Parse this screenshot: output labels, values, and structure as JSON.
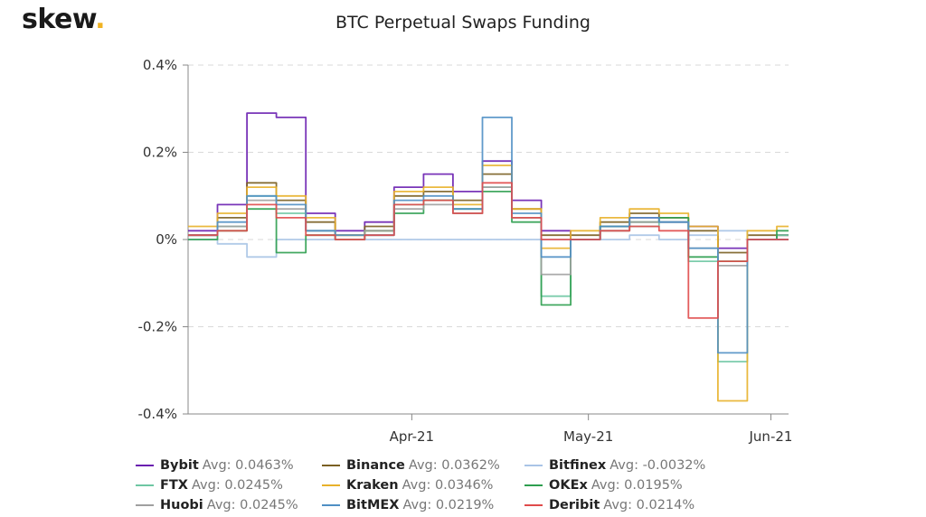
{
  "brand": {
    "name": "skew",
    "dot": "."
  },
  "chart_data": {
    "type": "line",
    "title": "BTC Perpetual Swaps Funding",
    "xlabel": "",
    "ylabel": "",
    "y_ticks": [
      "0.4%",
      "0.2%",
      "0%",
      "-0.2%",
      "-0.4%"
    ],
    "ylim": [
      -0.4,
      0.4
    ],
    "x_ticks": [
      "Apr-21",
      "May-21",
      "Jun-21"
    ],
    "x_tick_dates": [
      "2021-04-01",
      "2021-05-01",
      "2021-06-01"
    ],
    "xlim": [
      "2021-02-22",
      "2021-06-04"
    ],
    "grid": "horizontal-dashed",
    "legend_position": "bottom",
    "x": [
      "2021-02-22",
      "2021-02-27",
      "2021-03-04",
      "2021-03-09",
      "2021-03-14",
      "2021-03-19",
      "2021-03-24",
      "2021-03-29",
      "2021-04-03",
      "2021-04-08",
      "2021-04-13",
      "2021-04-18",
      "2021-04-23",
      "2021-04-28",
      "2021-05-03",
      "2021-05-08",
      "2021-05-13",
      "2021-05-18",
      "2021-05-23",
      "2021-05-28",
      "2021-06-02"
    ],
    "series": [
      {
        "name": "Bybit",
        "avg_label": "Avg: 0.0463%",
        "color": "#6a1fb0",
        "values": [
          0.02,
          0.08,
          0.29,
          0.28,
          0.06,
          0.02,
          0.04,
          0.12,
          0.15,
          0.11,
          0.18,
          0.09,
          0.02,
          0.0,
          0.03,
          0.05,
          0.04,
          0.03,
          -0.02,
          0.0,
          0.01
        ]
      },
      {
        "name": "Binance",
        "avg_label": "Avg: 0.0362%",
        "color": "#7a5f22",
        "values": [
          0.01,
          0.05,
          0.13,
          0.09,
          0.04,
          0.01,
          0.03,
          0.1,
          0.11,
          0.09,
          0.15,
          0.07,
          0.01,
          0.01,
          0.04,
          0.06,
          0.05,
          0.02,
          -0.03,
          0.01,
          0.01
        ]
      },
      {
        "name": "Bitfinex",
        "avg_label": "Avg: -0.0032%",
        "color": "#a9c4e6",
        "values": [
          0.0,
          -0.01,
          -0.04,
          0.0,
          0.0,
          0.0,
          0.0,
          0.0,
          0.0,
          0.0,
          0.0,
          0.0,
          0.0,
          0.0,
          0.0,
          0.01,
          0.0,
          0.01,
          0.02,
          0.0,
          0.0
        ]
      },
      {
        "name": "FTX",
        "avg_label": "Avg: 0.0245%",
        "color": "#6ec7a3",
        "values": [
          0.01,
          0.03,
          0.1,
          0.06,
          0.02,
          0.0,
          0.01,
          0.08,
          0.09,
          0.06,
          0.12,
          0.05,
          -0.13,
          0.0,
          0.02,
          0.03,
          0.04,
          -0.05,
          -0.28,
          0.0,
          0.01
        ]
      },
      {
        "name": "Kraken",
        "avg_label": "Avg: 0.0346%",
        "color": "#e8b12a",
        "values": [
          0.03,
          0.06,
          0.12,
          0.1,
          0.05,
          0.01,
          0.02,
          0.11,
          0.12,
          0.08,
          0.17,
          0.07,
          -0.02,
          0.02,
          0.05,
          0.07,
          0.06,
          0.03,
          -0.37,
          0.02,
          0.03
        ]
      },
      {
        "name": "OKEx",
        "avg_label": "Avg: 0.0195%",
        "color": "#2e9e4f",
        "values": [
          0.0,
          0.02,
          0.07,
          -0.03,
          0.01,
          0.0,
          0.02,
          0.06,
          0.09,
          0.07,
          0.11,
          0.04,
          -0.15,
          0.0,
          0.03,
          0.04,
          0.05,
          -0.04,
          -0.05,
          0.0,
          0.02
        ]
      },
      {
        "name": "Huobi",
        "avg_label": "Avg: 0.0245%",
        "color": "#a0a0a0",
        "values": [
          0.01,
          0.03,
          0.09,
          0.07,
          0.02,
          0.0,
          0.02,
          0.07,
          0.08,
          0.06,
          0.12,
          0.05,
          -0.08,
          0.0,
          0.02,
          0.04,
          0.04,
          -0.02,
          -0.06,
          0.0,
          0.0
        ]
      },
      {
        "name": "BitMEX",
        "avg_label": "Avg: 0.0219%",
        "color": "#4f8fc4",
        "values": [
          0.01,
          0.04,
          0.1,
          0.08,
          0.02,
          0.01,
          0.01,
          0.09,
          0.1,
          0.07,
          0.28,
          0.06,
          -0.04,
          0.0,
          0.03,
          0.05,
          0.04,
          -0.02,
          -0.26,
          0.0,
          0.0
        ]
      },
      {
        "name": "Deribit",
        "avg_label": "Avg: 0.0214%",
        "color": "#e04b4b",
        "values": [
          0.01,
          0.02,
          0.08,
          0.05,
          0.01,
          0.0,
          0.01,
          0.08,
          0.09,
          0.06,
          0.13,
          0.05,
          0.0,
          0.0,
          0.02,
          0.03,
          0.02,
          -0.18,
          -0.05,
          0.0,
          0.0
        ]
      }
    ]
  }
}
